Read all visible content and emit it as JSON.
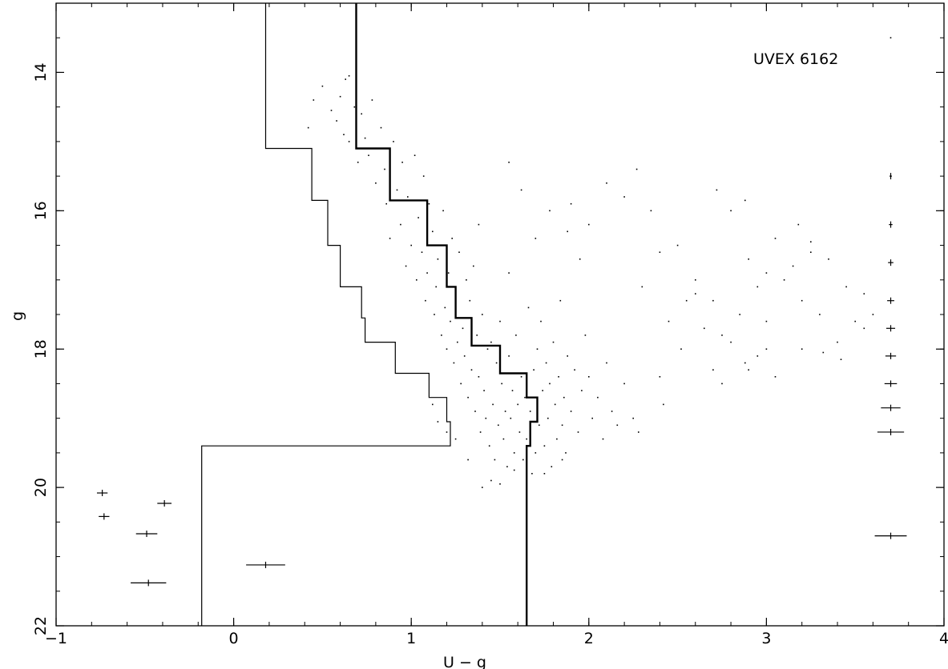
{
  "chart_data": {
    "type": "scatter",
    "title": "",
    "annotation": "UVEX 6162",
    "xlabel": "U − g",
    "ylabel": "g",
    "xlim": [
      -1,
      4
    ],
    "ylim": [
      22,
      13
    ],
    "y_inverted": true,
    "xticks": [
      -1,
      0,
      1,
      2,
      3,
      4
    ],
    "xtick_labels": [
      "−1",
      "0",
      "1",
      "2",
      "3",
      "4"
    ],
    "yticks": [
      14,
      16,
      18,
      20,
      22
    ],
    "ytick_labels": [
      "14",
      "16",
      "18",
      "20",
      "22"
    ],
    "grid": false,
    "legend": "none",
    "series": [
      {
        "kind": "step-line",
        "style": "thick",
        "points": [
          [
            0.69,
            13
          ],
          [
            0.69,
            15.1
          ],
          [
            0.88,
            15.1
          ],
          [
            0.88,
            15.85
          ],
          [
            1.09,
            15.85
          ],
          [
            1.09,
            16.5
          ],
          [
            1.2,
            16.5
          ],
          [
            1.2,
            17.1
          ],
          [
            1.25,
            17.1
          ],
          [
            1.25,
            17.55
          ],
          [
            1.34,
            17.55
          ],
          [
            1.34,
            17.95
          ],
          [
            1.5,
            17.95
          ],
          [
            1.5,
            18.35
          ],
          [
            1.65,
            18.35
          ],
          [
            1.65,
            18.7
          ],
          [
            1.71,
            18.7
          ],
          [
            1.71,
            19.05
          ],
          [
            1.67,
            19.05
          ],
          [
            1.67,
            19.4
          ],
          [
            1.65,
            19.4
          ],
          [
            1.65,
            22
          ]
        ]
      },
      {
        "kind": "step-line",
        "style": "thin",
        "points": [
          [
            0.18,
            13
          ],
          [
            0.18,
            15.1
          ],
          [
            0.44,
            15.1
          ],
          [
            0.44,
            15.85
          ],
          [
            0.53,
            15.85
          ],
          [
            0.53,
            16.5
          ],
          [
            0.6,
            16.5
          ],
          [
            0.6,
            17.1
          ],
          [
            0.72,
            17.1
          ],
          [
            0.72,
            17.55
          ],
          [
            0.74,
            17.55
          ],
          [
            0.74,
            17.9
          ],
          [
            0.91,
            17.9
          ],
          [
            0.91,
            18.35
          ],
          [
            1.1,
            18.35
          ],
          [
            1.1,
            18.7
          ],
          [
            1.2,
            18.7
          ],
          [
            1.2,
            19.05
          ],
          [
            1.22,
            19.05
          ],
          [
            1.22,
            19.4
          ],
          [
            -0.18,
            19.4
          ],
          [
            -0.18,
            22
          ]
        ]
      },
      {
        "kind": "scatter",
        "points": [
          [
            0.42,
            14.8
          ],
          [
            0.45,
            14.4
          ],
          [
            0.5,
            14.2
          ],
          [
            0.55,
            14.55
          ],
          [
            0.58,
            14.7
          ],
          [
            0.6,
            14.35
          ],
          [
            0.62,
            14.9
          ],
          [
            0.63,
            14.1
          ],
          [
            0.65,
            15.0
          ],
          [
            0.68,
            14.5
          ],
          [
            0.7,
            15.3
          ],
          [
            0.72,
            14.6
          ],
          [
            0.74,
            14.95
          ],
          [
            0.76,
            15.2
          ],
          [
            0.78,
            14.4
          ],
          [
            0.8,
            15.6
          ],
          [
            0.82,
            15.1
          ],
          [
            0.83,
            14.8
          ],
          [
            0.85,
            15.4
          ],
          [
            0.86,
            15.9
          ],
          [
            0.88,
            16.4
          ],
          [
            0.9,
            15.0
          ],
          [
            0.92,
            15.7
          ],
          [
            0.94,
            16.2
          ],
          [
            0.95,
            15.3
          ],
          [
            0.97,
            16.8
          ],
          [
            0.98,
            15.8
          ],
          [
            1.0,
            16.5
          ],
          [
            1.02,
            15.2
          ],
          [
            1.03,
            17.0
          ],
          [
            1.04,
            16.1
          ],
          [
            1.06,
            16.6
          ],
          [
            1.07,
            15.5
          ],
          [
            1.08,
            17.3
          ],
          [
            1.09,
            16.9
          ],
          [
            1.1,
            15.9
          ],
          [
            1.12,
            16.3
          ],
          [
            1.13,
            17.5
          ],
          [
            1.14,
            17.1
          ],
          [
            1.15,
            16.7
          ],
          [
            1.17,
            17.8
          ],
          [
            1.18,
            16.0
          ],
          [
            1.19,
            17.4
          ],
          [
            1.2,
            18.0
          ],
          [
            1.21,
            16.9
          ],
          [
            1.22,
            17.6
          ],
          [
            1.23,
            16.4
          ],
          [
            1.24,
            18.2
          ],
          [
            1.25,
            17.2
          ],
          [
            1.26,
            17.9
          ],
          [
            1.27,
            16.6
          ],
          [
            1.28,
            18.5
          ],
          [
            1.29,
            17.7
          ],
          [
            1.3,
            18.1
          ],
          [
            1.31,
            17.0
          ],
          [
            1.32,
            18.7
          ],
          [
            1.33,
            17.3
          ],
          [
            1.34,
            18.3
          ],
          [
            1.35,
            16.8
          ],
          [
            1.36,
            18.9
          ],
          [
            1.37,
            17.8
          ],
          [
            1.38,
            18.4
          ],
          [
            1.39,
            19.2
          ],
          [
            1.4,
            17.5
          ],
          [
            1.41,
            18.6
          ],
          [
            1.42,
            19.0
          ],
          [
            1.43,
            18.0
          ],
          [
            1.44,
            19.4
          ],
          [
            1.45,
            17.9
          ],
          [
            1.46,
            18.8
          ],
          [
            1.47,
            19.6
          ],
          [
            1.48,
            18.2
          ],
          [
            1.49,
            19.1
          ],
          [
            1.5,
            17.6
          ],
          [
            1.51,
            18.5
          ],
          [
            1.52,
            19.3
          ],
          [
            1.53,
            18.9
          ],
          [
            1.54,
            19.7
          ],
          [
            1.55,
            18.1
          ],
          [
            1.56,
            19.0
          ],
          [
            1.57,
            18.6
          ],
          [
            1.58,
            19.5
          ],
          [
            1.59,
            17.8
          ],
          [
            1.6,
            18.8
          ],
          [
            1.61,
            19.2
          ],
          [
            1.62,
            18.4
          ],
          [
            1.63,
            19.6
          ],
          [
            1.64,
            18.7
          ],
          [
            1.65,
            19.3
          ],
          [
            1.66,
            17.4
          ],
          [
            1.67,
            18.9
          ],
          [
            1.68,
            19.8
          ],
          [
            1.69,
            18.3
          ],
          [
            1.7,
            19.5
          ],
          [
            1.71,
            18.0
          ],
          [
            1.72,
            19.1
          ],
          [
            1.73,
            17.6
          ],
          [
            1.74,
            18.6
          ],
          [
            1.75,
            19.4
          ],
          [
            1.76,
            18.2
          ],
          [
            1.77,
            19.0
          ],
          [
            1.78,
            18.5
          ],
          [
            1.79,
            19.7
          ],
          [
            1.8,
            17.9
          ],
          [
            1.81,
            18.8
          ],
          [
            1.82,
            19.3
          ],
          [
            1.83,
            18.4
          ],
          [
            1.84,
            17.3
          ],
          [
            1.85,
            19.1
          ],
          [
            1.86,
            18.7
          ],
          [
            1.87,
            19.5
          ],
          [
            1.88,
            18.1
          ],
          [
            1.9,
            18.9
          ],
          [
            1.92,
            18.3
          ],
          [
            1.94,
            19.2
          ],
          [
            1.96,
            18.6
          ],
          [
            1.98,
            17.8
          ],
          [
            2.0,
            18.4
          ],
          [
            2.02,
            19.0
          ],
          [
            2.05,
            18.7
          ],
          [
            2.08,
            19.3
          ],
          [
            2.1,
            18.2
          ],
          [
            2.13,
            18.9
          ],
          [
            2.16,
            19.1
          ],
          [
            2.2,
            18.5
          ],
          [
            2.25,
            19.0
          ],
          [
            2.28,
            19.2
          ],
          [
            1.45,
            19.9
          ],
          [
            1.4,
            20.0
          ],
          [
            1.5,
            19.95
          ],
          [
            1.2,
            19.2
          ],
          [
            1.32,
            19.6
          ],
          [
            1.58,
            19.75
          ],
          [
            1.75,
            19.8
          ],
          [
            1.85,
            19.6
          ],
          [
            1.62,
            15.7
          ],
          [
            1.9,
            15.9
          ],
          [
            2.0,
            16.2
          ],
          [
            2.1,
            15.6
          ],
          [
            1.78,
            16.0
          ],
          [
            1.88,
            16.3
          ],
          [
            1.95,
            16.7
          ],
          [
            2.27,
            15.4
          ],
          [
            2.35,
            16.0
          ],
          [
            2.4,
            16.6
          ],
          [
            2.5,
            16.5
          ],
          [
            2.55,
            17.3
          ],
          [
            2.6,
            17.0
          ],
          [
            2.65,
            17.7
          ],
          [
            2.7,
            17.3
          ],
          [
            2.75,
            17.8
          ],
          [
            2.8,
            16.0
          ],
          [
            2.85,
            17.5
          ],
          [
            2.9,
            16.7
          ],
          [
            2.95,
            17.1
          ],
          [
            3.0,
            17.6
          ],
          [
            3.05,
            16.4
          ],
          [
            3.1,
            17.0
          ],
          [
            3.15,
            16.8
          ],
          [
            3.2,
            17.3
          ],
          [
            3.25,
            16.6
          ],
          [
            3.3,
            17.5
          ],
          [
            3.35,
            16.7
          ],
          [
            3.4,
            17.9
          ],
          [
            3.45,
            17.1
          ],
          [
            3.5,
            17.6
          ],
          [
            3.55,
            17.2
          ],
          [
            3.6,
            17.5
          ],
          [
            2.72,
            15.7
          ],
          [
            2.88,
            15.85
          ],
          [
            3.0,
            16.9
          ],
          [
            2.95,
            18.1
          ],
          [
            2.88,
            18.2
          ],
          [
            2.8,
            17.9
          ],
          [
            2.9,
            18.3
          ],
          [
            3.0,
            18.0
          ],
          [
            2.7,
            18.3
          ],
          [
            2.75,
            18.5
          ],
          [
            2.6,
            17.2
          ],
          [
            2.45,
            17.6
          ],
          [
            2.52,
            18.0
          ],
          [
            2.3,
            17.1
          ],
          [
            3.42,
            18.15
          ],
          [
            3.2,
            18.0
          ],
          [
            3.55,
            17.7
          ],
          [
            3.05,
            18.4
          ],
          [
            3.18,
            16.2
          ],
          [
            3.25,
            16.45
          ],
          [
            3.7,
            13.5
          ],
          [
            0.65,
            14.05
          ],
          [
            0.72,
            15.1
          ],
          [
            1.55,
            16.9
          ],
          [
            2.42,
            18.8
          ],
          [
            2.4,
            18.4
          ],
          [
            3.32,
            18.05
          ],
          [
            2.2,
            15.8
          ],
          [
            1.15,
            19.05
          ],
          [
            1.12,
            18.8
          ],
          [
            1.25,
            19.3
          ],
          [
            1.7,
            16.4
          ],
          [
            1.55,
            15.3
          ],
          [
            1.38,
            16.2
          ]
        ]
      },
      {
        "kind": "error-bars-x",
        "points": [
          [
            -0.74,
            20.08,
            0.03
          ],
          [
            -0.73,
            20.42,
            0.03
          ],
          [
            -0.39,
            20.23,
            0.04
          ],
          [
            -0.49,
            20.67,
            0.06
          ],
          [
            -0.48,
            21.38,
            0.1
          ],
          [
            0.18,
            21.12,
            0.11
          ]
        ]
      },
      {
        "kind": "error-bars-x",
        "points": [
          [
            3.7,
            15.5,
            0.005
          ],
          [
            3.7,
            16.2,
            0.01
          ],
          [
            3.7,
            16.75,
            0.015
          ],
          [
            3.7,
            17.3,
            0.02
          ],
          [
            3.7,
            17.7,
            0.025
          ],
          [
            3.7,
            18.1,
            0.03
          ],
          [
            3.7,
            18.5,
            0.035
          ],
          [
            3.7,
            18.85,
            0.055
          ],
          [
            3.7,
            19.2,
            0.075
          ],
          [
            3.7,
            20.7,
            0.09
          ]
        ]
      }
    ]
  }
}
